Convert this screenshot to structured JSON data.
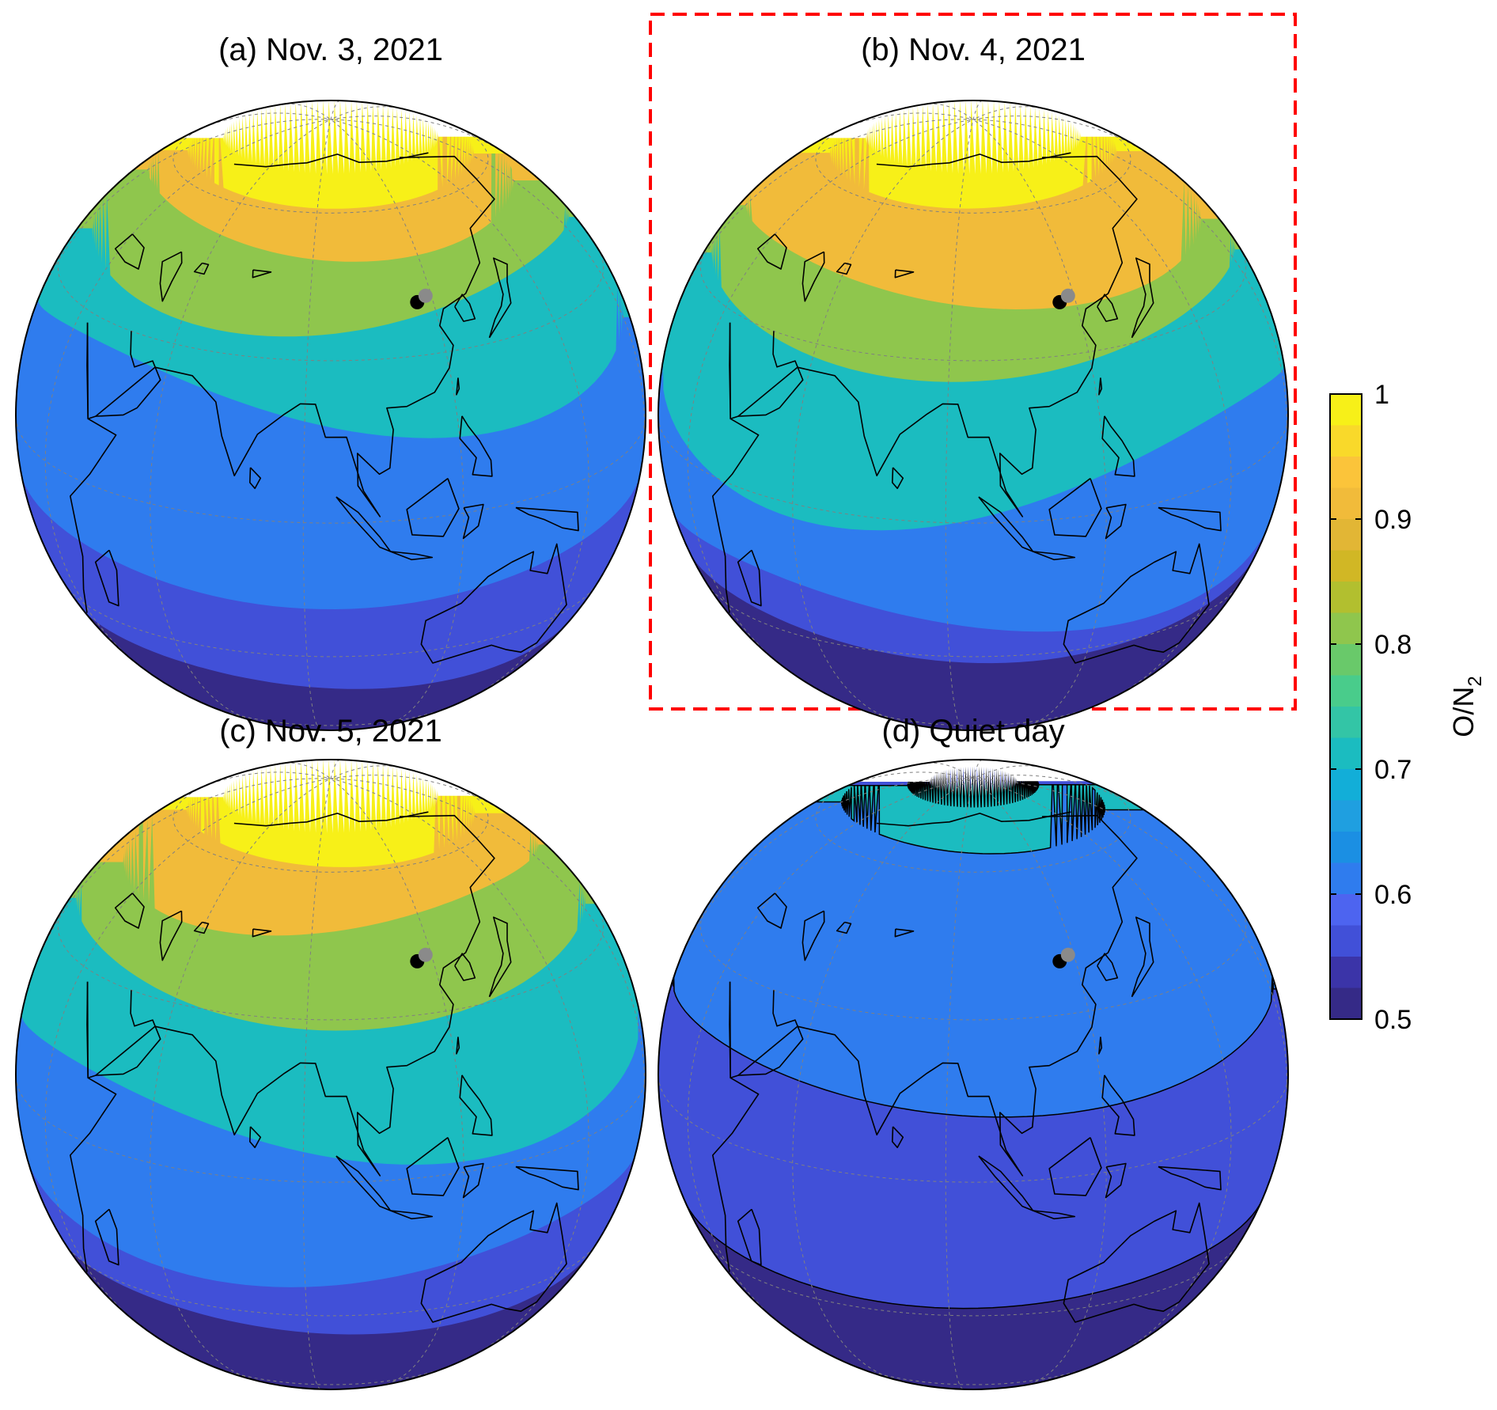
{
  "panels": [
    {
      "id": "a",
      "title": "(a) Nov. 3, 2021",
      "highlighted": false,
      "bands": [
        {
          "value": 0.55,
          "boundary_lat": -38,
          "amp": 3,
          "phase": 0.6
        },
        {
          "value": 0.6,
          "boundary_lat": -14,
          "amp": 4,
          "phase": 1.4
        },
        {
          "value": 0.7,
          "boundary_lat": 20,
          "amp": 6,
          "phase": 0.2
        },
        {
          "value": 0.8,
          "boundary_lat": 38,
          "amp": 4,
          "phase": 2.1
        },
        {
          "value": 0.9,
          "boundary_lat": 52,
          "amp": 3,
          "phase": 0.9
        },
        {
          "value": 1.0,
          "boundary_lat": 62,
          "amp": 1,
          "phase": 1.2
        }
      ],
      "polar_cap_lat": 70
    },
    {
      "id": "b",
      "title": "(b) Nov. 4, 2021",
      "highlighted": true,
      "bands": [
        {
          "value": 0.55,
          "boundary_lat": -28,
          "amp": 4,
          "phase": 1.1
        },
        {
          "value": 0.6,
          "boundary_lat": -20,
          "amp": 5,
          "phase": 0.3
        },
        {
          "value": 0.7,
          "boundary_lat": 5,
          "amp": 8,
          "phase": 2.4
        },
        {
          "value": 0.8,
          "boundary_lat": 30,
          "amp": 4,
          "phase": 1.7
        },
        {
          "value": 0.9,
          "boundary_lat": 42,
          "amp": 3,
          "phase": 0.5
        },
        {
          "value": 1.0,
          "boundary_lat": 62,
          "amp": 1,
          "phase": 1.8
        }
      ],
      "polar_cap_lat": 70
    },
    {
      "id": "c",
      "title": "(c) Nov. 5, 2021",
      "highlighted": false,
      "bands": [
        {
          "value": 0.55,
          "boundary_lat": -33,
          "amp": 3,
          "phase": 0.8
        },
        {
          "value": 0.6,
          "boundary_lat": -18,
          "amp": 5,
          "phase": 2.0
        },
        {
          "value": 0.7,
          "boundary_lat": 8,
          "amp": 6,
          "phase": 0.4
        },
        {
          "value": 0.8,
          "boundary_lat": 32,
          "amp": 4,
          "phase": 1.3
        },
        {
          "value": 0.9,
          "boundary_lat": 48,
          "amp": 3,
          "phase": 2.6
        },
        {
          "value": 1.0,
          "boundary_lat": 62,
          "amp": 1,
          "phase": 0.7
        }
      ],
      "polar_cap_lat": 70
    },
    {
      "id": "d",
      "title": "(d) Quiet day",
      "highlighted": false,
      "bands": [
        {
          "value": 0.55,
          "boundary_lat": -25,
          "amp": 3,
          "phase": 1.6
        },
        {
          "value": 0.6,
          "boundary_lat": 15,
          "amp": 3,
          "phase": 0.9
        },
        {
          "value": 0.7,
          "boundary_lat": 65,
          "amp": 1,
          "phase": 0.2
        },
        {
          "value": 0.55,
          "boundary_lat": 78,
          "amp": 0,
          "phase": 0
        }
      ],
      "polar_cap_lat": 82
    }
  ],
  "colorbar": {
    "label": "O/N",
    "label_subscript": "2",
    "min": 0.5,
    "max": 1.0,
    "ticks": [
      "0.5",
      "0.6",
      "0.7",
      "0.8",
      "0.9",
      "1"
    ],
    "levels": [
      0.5,
      0.525,
      0.55,
      0.575,
      0.6,
      0.625,
      0.65,
      0.675,
      0.7,
      0.725,
      0.75,
      0.775,
      0.8,
      0.825,
      0.85,
      0.875,
      0.9,
      0.925,
      0.95,
      0.975,
      1.0
    ],
    "colors": [
      "#352a87",
      "#3b34a8",
      "#4150d8",
      "#4d64f0",
      "#2f7cee",
      "#1b8fe3",
      "#1f9fe0",
      "#12aed8",
      "#1bbcc0",
      "#33c5a6",
      "#49cc8b",
      "#69c96a",
      "#8fc64d",
      "#b2bf2f",
      "#d1b725",
      "#e2b635",
      "#f1bb3a",
      "#fbc43a",
      "#f9d92a",
      "#f7f018"
    ]
  },
  "map": {
    "center_lon": 95,
    "center_lat": 20,
    "graticule_step_deg": 30,
    "station_points": [
      {
        "name": "black-dot",
        "lat": 40,
        "lon": 116,
        "color": "#000000"
      },
      {
        "name": "gray-dot",
        "lat": 41,
        "lon": 118.5,
        "color": "#8a8a8a"
      }
    ]
  },
  "colors": {
    "highlight_box": "#ff0000",
    "coastline": "#000000",
    "graticule": "#808080"
  }
}
